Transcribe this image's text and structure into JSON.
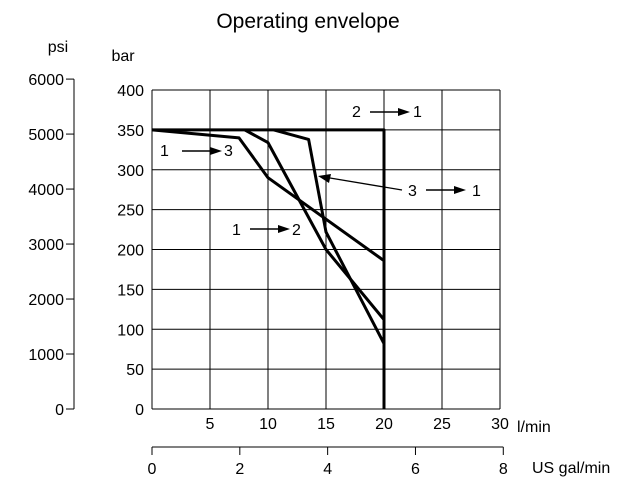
{
  "chart_data": {
    "type": "line",
    "title": "Operating envelope",
    "x_axis": {
      "unit": "l/min",
      "range": [
        0,
        30
      ],
      "ticks": [
        "5",
        "10",
        "15",
        "20",
        "25",
        "30"
      ]
    },
    "x2_axis": {
      "unit": "US gal/min",
      "range": [
        0,
        8
      ],
      "ticks": [
        "0",
        "2",
        "4",
        "6",
        "8"
      ]
    },
    "y_axis": {
      "unit": "bar",
      "range": [
        0,
        400
      ],
      "ticks": [
        "0",
        "50",
        "100",
        "150",
        "200",
        "250",
        "300",
        "350",
        "400"
      ]
    },
    "y2_axis": {
      "unit": "psi",
      "range": [
        0,
        6000
      ],
      "ticks": [
        "0",
        "1000",
        "2000",
        "3000",
        "4000",
        "5000",
        "6000"
      ]
    },
    "grid": true,
    "series": [
      {
        "x": [
          0,
          20,
          20
        ],
        "y": [
          350,
          350,
          0
        ]
      },
      {
        "x": [
          0,
          7.5,
          10,
          20
        ],
        "y": [
          350,
          340,
          290,
          186
        ]
      },
      {
        "x": [
          8,
          10,
          15,
          20
        ],
        "y": [
          350,
          334,
          200,
          112
        ]
      },
      {
        "x": [
          10.5,
          13.5,
          15,
          20
        ],
        "y": [
          350,
          338,
          222,
          82
        ]
      }
    ],
    "annotations": [
      {
        "from": "1",
        "to": "3"
      },
      {
        "from": "1",
        "to": "2"
      },
      {
        "from": "2",
        "to": "1"
      },
      {
        "from": "3",
        "to": "1"
      }
    ]
  }
}
